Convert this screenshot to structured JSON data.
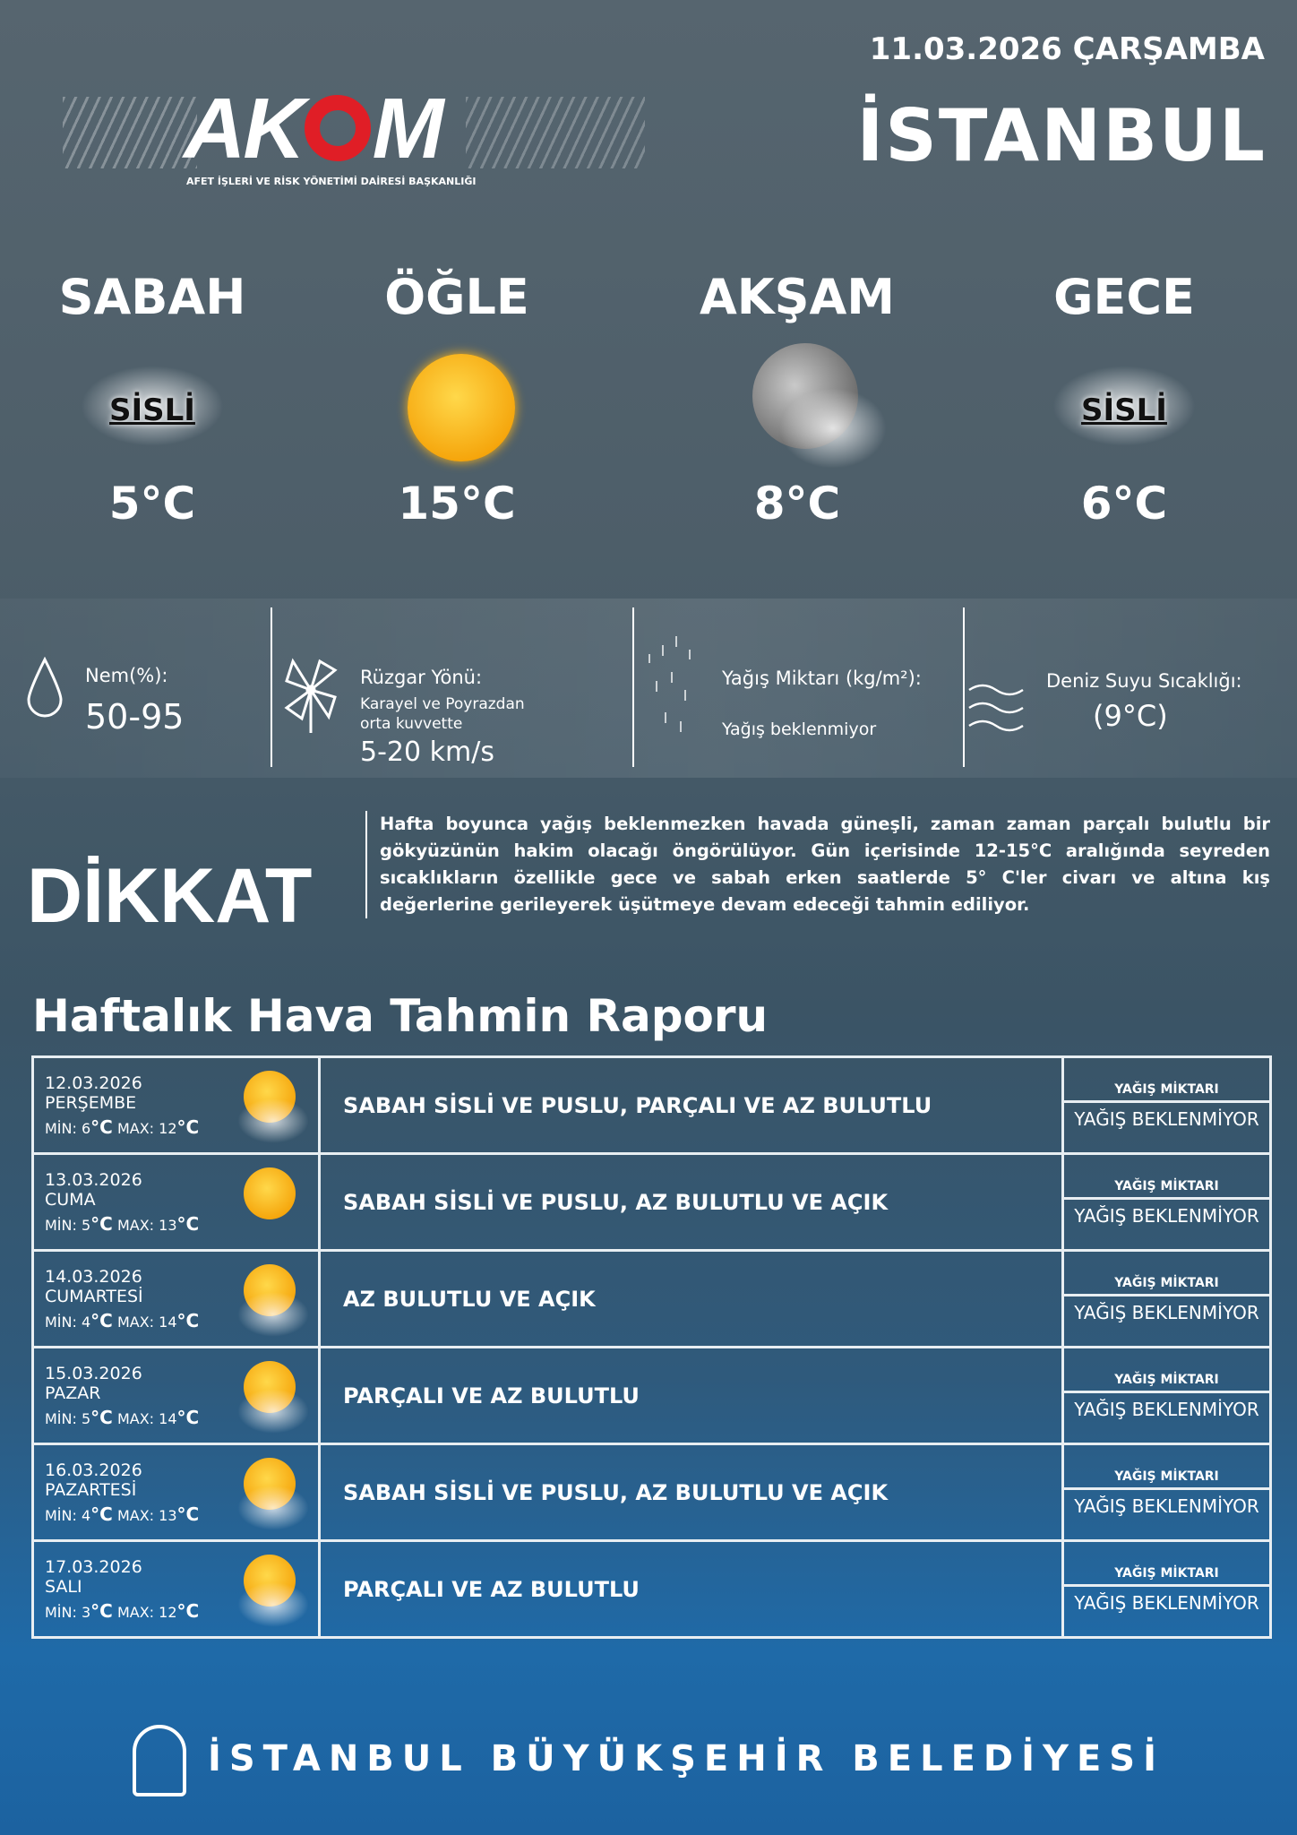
{
  "header": {
    "date": "11.03.2026 ÇARŞAMBA",
    "city": "İSTANBUL",
    "logo_text": "AKOM",
    "logo_subtitle": "AFET İŞLERİ VE RİSK YÖNETİMİ DAİRESİ BAŞKANLIĞI"
  },
  "periods": [
    {
      "name": "SABAH",
      "condition": "SİSLİ",
      "icon": "fog-icon",
      "temp": "5°C"
    },
    {
      "name": "ÖĞLE",
      "condition": "",
      "icon": "sun-icon",
      "temp": "15°C"
    },
    {
      "name": "AKŞAM",
      "condition": "",
      "icon": "moon-cloud-icon",
      "temp": "8°C"
    },
    {
      "name": "GECE",
      "condition": "SİSLİ",
      "icon": "fog-icon",
      "temp": "6°C"
    }
  ],
  "info": {
    "humidity": {
      "label": "Nem(%):",
      "value": "50-95"
    },
    "wind": {
      "label": "Rüzgar Yönü:",
      "desc": "Karayel ve Poyrazdan orta kuvvette",
      "value": "5-20 km/s"
    },
    "rain": {
      "label": "Yağış Miktarı (kg/m²):",
      "value": "Yağış beklenmiyor"
    },
    "sea": {
      "label": "Deniz Suyu Sıcaklığı:",
      "value": "(9°C)"
    }
  },
  "warning": {
    "title": "DİKKAT",
    "text": "Hafta boyunca yağış beklenmezken havada güneşli, zaman zaman parçalı bulutlu bir gökyüzünün hakim olacağı öngörülüyor. Gün içerisinde 12-15°C aralığında seyreden sıcaklıkların özellikle gece ve sabah erken saatlerde 5° C'ler civarı ve altına kış değerlerine gerileyerek üşütmeye devam edeceği tahmin ediliyor."
  },
  "weekly": {
    "title": "Haftalık Hava Tahmin Raporu",
    "min_label": "MİN:",
    "max_label": "MAX:",
    "rain_label": "YAĞIŞ MİKTARI",
    "days": [
      {
        "date": "12.03.2026",
        "day": "PERŞEMBE",
        "min": "6",
        "max": "12",
        "unit": "°C",
        "desc": "SABAH SİSLİ VE PUSLU, PARÇALI VE AZ BULUTLU",
        "rain": "YAĞIŞ BEKLENMİYOR"
      },
      {
        "date": "13.03.2026",
        "day": "CUMA",
        "min": "5",
        "max": "13",
        "unit": "°C",
        "desc": "SABAH SİSLİ VE PUSLU, AZ BULUTLU VE AÇIK",
        "rain": "YAĞIŞ BEKLENMİYOR"
      },
      {
        "date": "14.03.2026",
        "day": "CUMARTESİ",
        "min": "4",
        "max": "14",
        "unit": "°C",
        "desc": "AZ BULUTLU VE AÇIK",
        "rain": "YAĞIŞ BEKLENMİYOR"
      },
      {
        "date": "15.03.2026",
        "day": "PAZAR",
        "min": "5",
        "max": "14",
        "unit": "°C",
        "desc": "PARÇALI VE AZ BULUTLU",
        "rain": "YAĞIŞ BEKLENMİYOR"
      },
      {
        "date": "16.03.2026",
        "day": "PAZARTESİ",
        "min": "4",
        "max": "13",
        "unit": "°C",
        "desc": "SABAH SİSLİ VE PUSLU, AZ BULUTLU VE AÇIK",
        "rain": "YAĞIŞ BEKLENMİYOR"
      },
      {
        "date": "17.03.2026",
        "day": "SALI",
        "min": "3",
        "max": "12",
        "unit": "°C",
        "desc": "PARÇALI VE AZ BULUTLU",
        "rain": "YAĞIŞ BEKLENMİYOR"
      }
    ]
  },
  "footer": {
    "text": "İSTANBUL BÜYÜKŞEHİR BELEDİYESİ"
  },
  "colors": {
    "logo_red": "#e01e26",
    "sun": "#f5a40a"
  }
}
